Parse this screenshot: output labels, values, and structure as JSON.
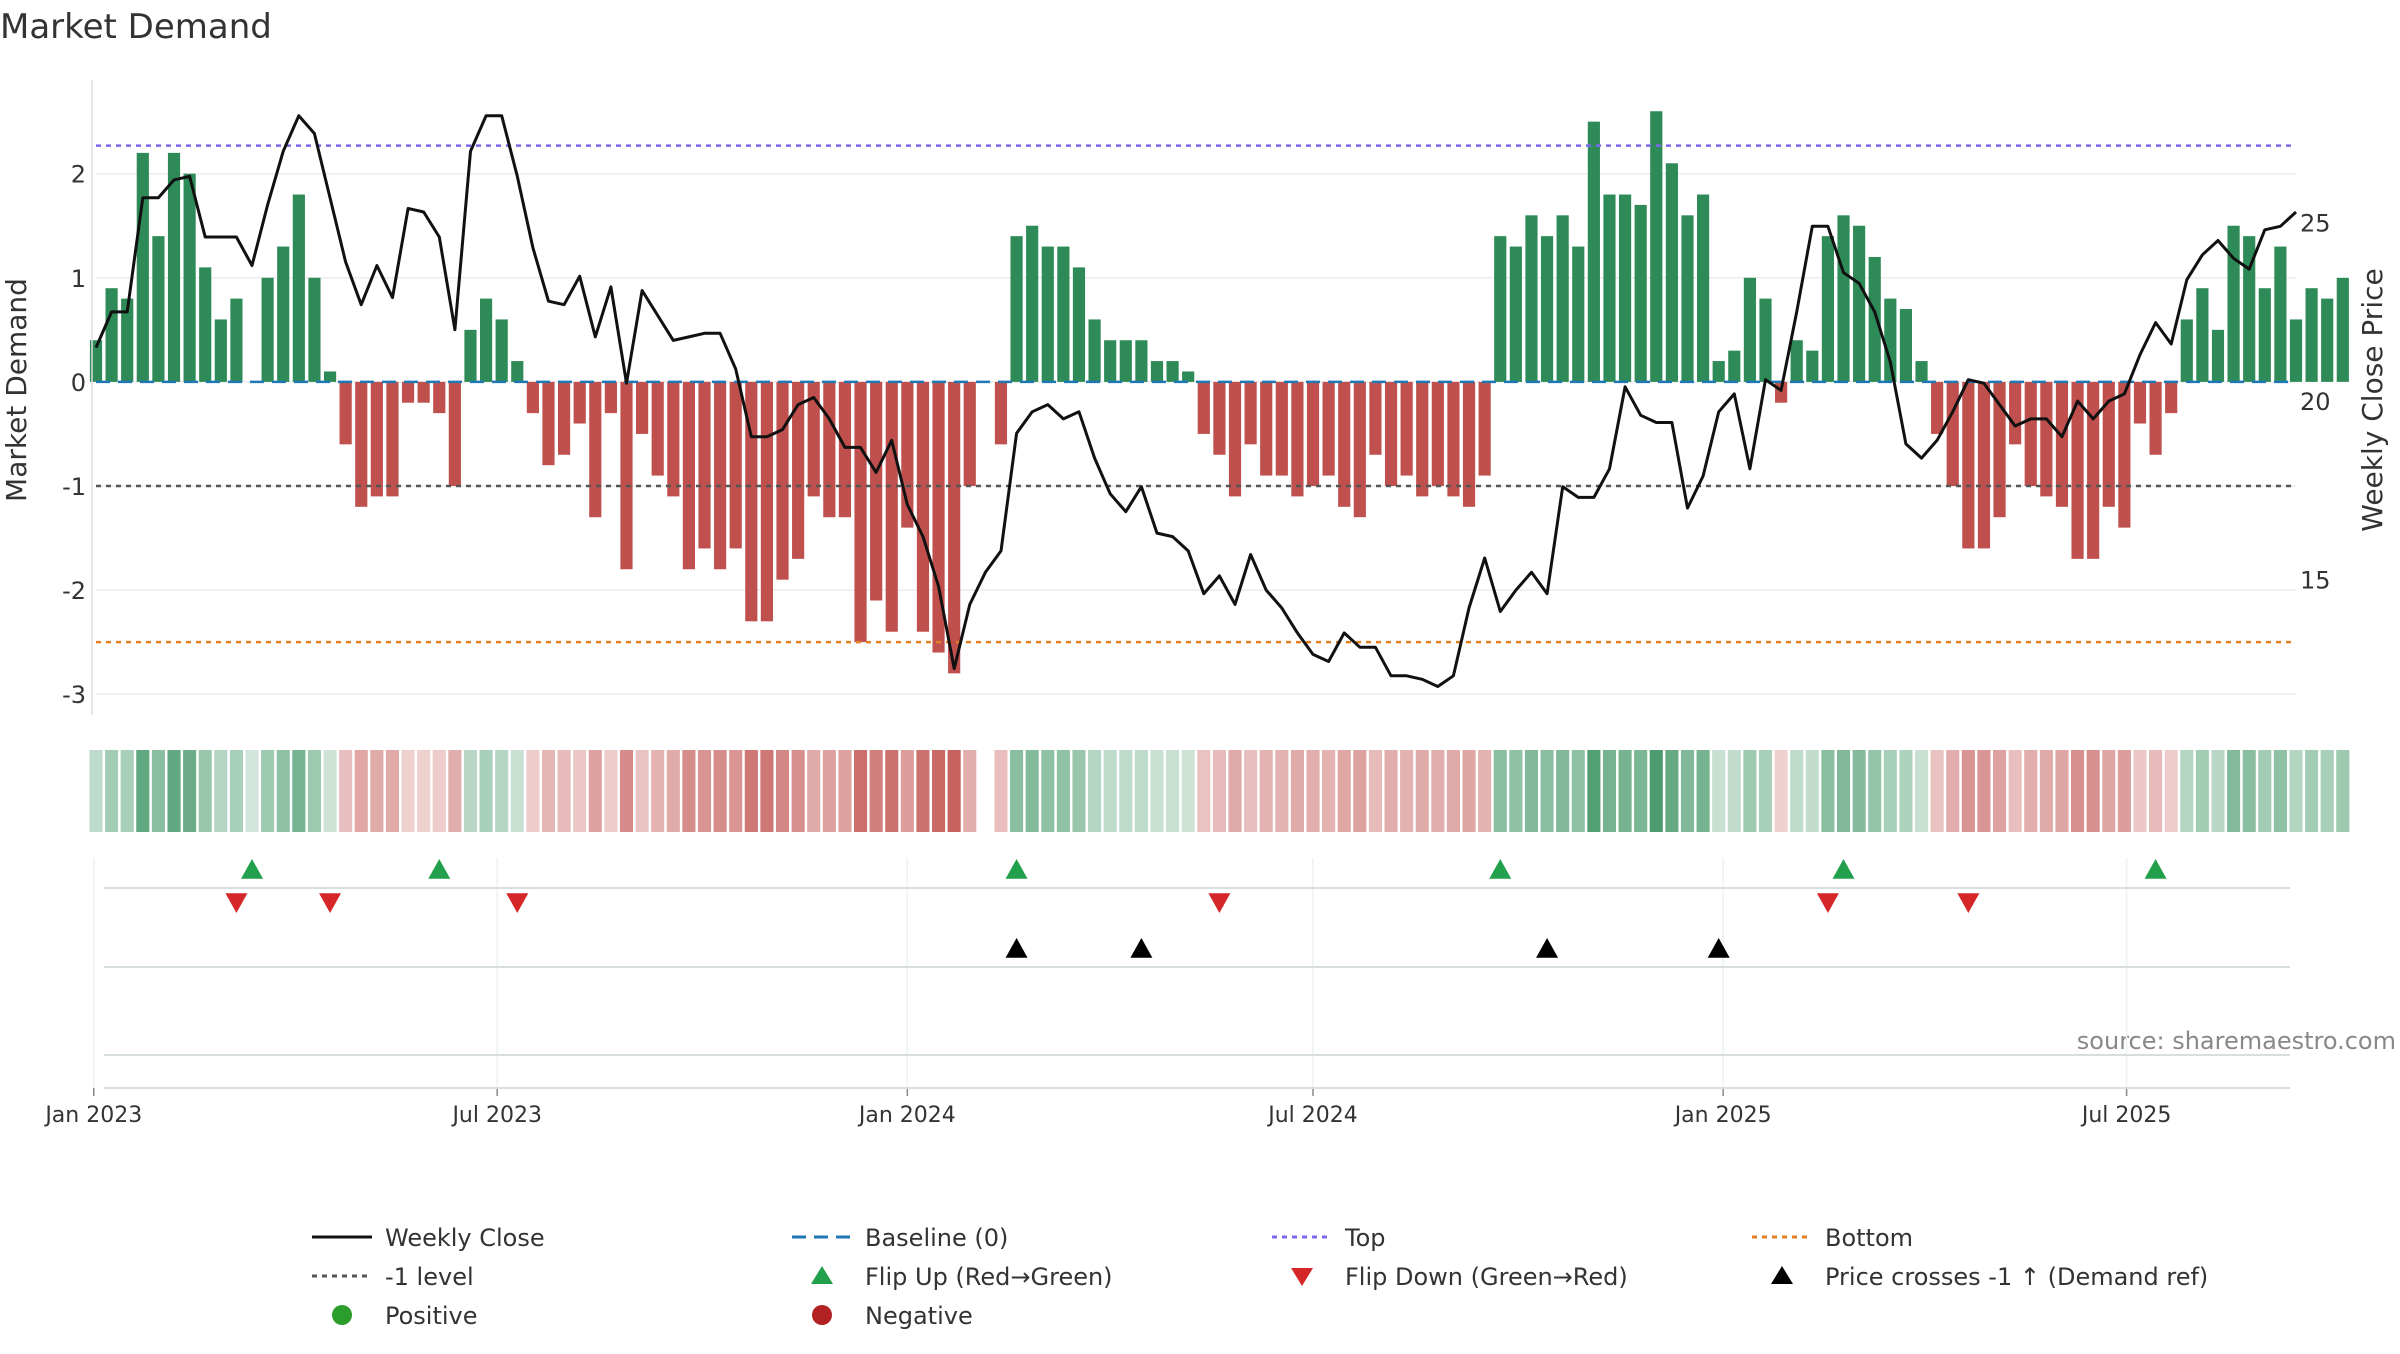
{
  "chart_data": {
    "type": "bar",
    "title": "Market Demand",
    "ylabel": "Market Demand",
    "y2label": "Weekly Close Price",
    "source": "source: sharemaestro.com",
    "ylim": [
      -3.2,
      2.9
    ],
    "y2lim": [
      11.2,
      29.0
    ],
    "yticks": [
      2,
      1,
      0,
      -1,
      -2,
      -3
    ],
    "y2ticks": [
      25,
      20,
      15
    ],
    "reference_lines": {
      "top": 2.27,
      "baseline": 0,
      "minus_one": -1,
      "bottom": -2.5
    },
    "x_start": "2023-01-02",
    "x_end": "2025-09-15",
    "xticks": [
      {
        "date": "2023-01-01",
        "label": "Jan 2023"
      },
      {
        "date": "2023-07-01",
        "label": "Jul 2023"
      },
      {
        "date": "2024-01-01",
        "label": "Jan 2024"
      },
      {
        "date": "2024-07-01",
        "label": "Jul 2024"
      },
      {
        "date": "2025-01-01",
        "label": "Jan 2025"
      },
      {
        "date": "2025-07-01",
        "label": "Jul 2025"
      }
    ],
    "demand": [
      0.4,
      0.9,
      0.8,
      2.2,
      1.4,
      2.2,
      2.0,
      1.1,
      0.6,
      0.8,
      0.0,
      1.0,
      1.3,
      1.8,
      1.0,
      0.1,
      -0.6,
      -1.2,
      -1.1,
      -1.1,
      -0.2,
      -0.2,
      -0.3,
      -1.0,
      0.5,
      0.8,
      0.6,
      0.2,
      -0.3,
      -0.8,
      -0.7,
      -0.4,
      -1.3,
      -0.3,
      -1.8,
      -0.5,
      -0.9,
      -1.1,
      -1.8,
      -1.6,
      -1.8,
      -1.6,
      -2.3,
      -2.3,
      -1.9,
      -1.7,
      -1.1,
      -1.3,
      -1.3,
      -2.5,
      -2.1,
      -2.4,
      -1.4,
      -2.4,
      -2.6,
      -2.8,
      -1.0,
      null,
      -0.6,
      1.4,
      1.5,
      1.3,
      1.3,
      1.1,
      0.6,
      0.4,
      0.4,
      0.4,
      0.2,
      0.2,
      0.1,
      -0.5,
      -0.7,
      -1.1,
      -0.6,
      -0.9,
      -0.9,
      -1.1,
      -1.0,
      -0.9,
      -1.2,
      -1.3,
      -0.7,
      -1.0,
      -0.9,
      -1.1,
      -1.0,
      -1.1,
      -1.2,
      -0.9,
      1.4,
      1.3,
      1.6,
      1.4,
      1.6,
      1.3,
      2.5,
      1.8,
      1.8,
      1.7,
      2.6,
      2.1,
      1.6,
      1.8,
      0.2,
      0.3,
      1.0,
      0.8,
      -0.2,
      0.4,
      0.3,
      1.4,
      1.6,
      1.5,
      1.2,
      0.8,
      0.7,
      0.2,
      -0.5,
      -1.0,
      -1.6,
      -1.6,
      -1.3,
      -0.6,
      -1.0,
      -1.1,
      -1.2,
      -1.7,
      -1.7,
      -1.2,
      -1.4,
      -0.4,
      -0.7,
      -0.3,
      0.6,
      0.9,
      0.5,
      1.5,
      1.4,
      0.9,
      1.3,
      0.6,
      0.9,
      0.8,
      1.0
    ],
    "price": [
      21.5,
      22.5,
      22.5,
      25.7,
      25.7,
      26.2,
      26.3,
      24.6,
      24.6,
      24.6,
      23.8,
      25.5,
      27.0,
      28.0,
      27.5,
      25.7,
      23.9,
      22.7,
      23.8,
      22.9,
      25.4,
      25.3,
      24.6,
      22.0,
      27.0,
      28.0,
      28.0,
      26.3,
      24.3,
      22.8,
      22.7,
      23.5,
      21.8,
      23.2,
      20.5,
      23.1,
      22.4,
      21.7,
      21.8,
      21.9,
      21.9,
      20.9,
      19.0,
      19.0,
      19.2,
      19.9,
      20.1,
      19.5,
      18.7,
      18.7,
      18.0,
      18.9,
      17.1,
      16.2,
      14.8,
      12.5,
      14.3,
      15.2,
      15.8,
      19.1,
      19.7,
      19.9,
      19.5,
      19.7,
      18.4,
      17.4,
      16.9,
      17.6,
      16.3,
      16.2,
      15.8,
      14.6,
      15.1,
      14.3,
      15.7,
      14.7,
      14.2,
      13.5,
      12.9,
      12.7,
      13.5,
      13.1,
      13.1,
      12.3,
      12.3,
      12.2,
      12.0,
      12.3,
      14.2,
      15.6,
      14.1,
      14.7,
      15.2,
      14.6,
      17.6,
      17.3,
      17.3,
      18.1,
      20.4,
      19.6,
      19.4,
      19.4,
      17.0,
      17.9,
      19.7,
      20.2,
      18.1,
      20.6,
      20.3,
      22.5,
      24.9,
      24.9,
      23.6,
      23.3,
      22.5,
      21.1,
      18.8,
      18.4,
      18.9,
      19.7,
      20.6,
      20.5,
      19.9,
      19.3,
      19.5,
      19.5,
      19.0,
      20.0,
      19.5,
      20.0,
      20.2,
      21.3,
      22.2,
      21.6,
      23.4,
      24.1,
      24.5,
      24.0,
      23.7,
      24.8,
      24.9,
      25.3
    ]
  },
  "heat_strip": {
    "positive_color": "#2e8b57",
    "negative_color": "#c0504d"
  },
  "events": {
    "flip_up": [
      "2023-03-13",
      "2023-06-05",
      "2024-02-19",
      "2024-09-23",
      "2025-02-24",
      "2025-07-14"
    ],
    "flip_down": [
      "2023-03-06",
      "2023-04-17",
      "2023-07-10",
      "2024-05-20",
      "2025-02-17",
      "2025-04-21"
    ],
    "price_cross": [
      "2024-02-19",
      "2024-04-15",
      "2024-10-14",
      "2024-12-30"
    ]
  },
  "colors": {
    "positive": "#2e8b57",
    "negative": "#c0504d",
    "price_line": "#111111",
    "baseline": "#1f77b4",
    "top": "#7b68ee",
    "minus_one": "#555555",
    "bottom": "#e67e22",
    "flip_up": "#22a04b",
    "flip_down": "#d62728",
    "cross": "#000000",
    "positive_dot": "#2a9d2a",
    "negative_dot": "#b22222"
  },
  "legend": [
    {
      "key": "weekly-close",
      "label": "Weekly Close",
      "marker": "line-solid",
      "color": "#111111"
    },
    {
      "key": "baseline",
      "label": "Baseline (0)",
      "marker": "line-dashed",
      "color": "#1f77b4"
    },
    {
      "key": "top",
      "label": "Top",
      "marker": "line-dotted",
      "color": "#7b68ee"
    },
    {
      "key": "bottom",
      "label": "Bottom",
      "marker": "line-dotted",
      "color": "#e67e22"
    },
    {
      "key": "minus-one",
      "label": "-1 level",
      "marker": "line-dotted",
      "color": "#555555"
    },
    {
      "key": "flip-up",
      "label": "Flip Up (Red→Green)",
      "marker": "tri-up",
      "color": "#22a04b"
    },
    {
      "key": "flip-down",
      "label": "Flip Down (Green→Red)",
      "marker": "tri-down",
      "color": "#d62728"
    },
    {
      "key": "price-cross",
      "label": "Price crosses -1 ↑ (Demand ref)",
      "marker": "tri-up",
      "color": "#000000"
    },
    {
      "key": "positive",
      "label": "Positive",
      "marker": "dot",
      "color": "#2a9d2a"
    },
    {
      "key": "negative",
      "label": "Negative",
      "marker": "dot",
      "color": "#b22222"
    }
  ]
}
